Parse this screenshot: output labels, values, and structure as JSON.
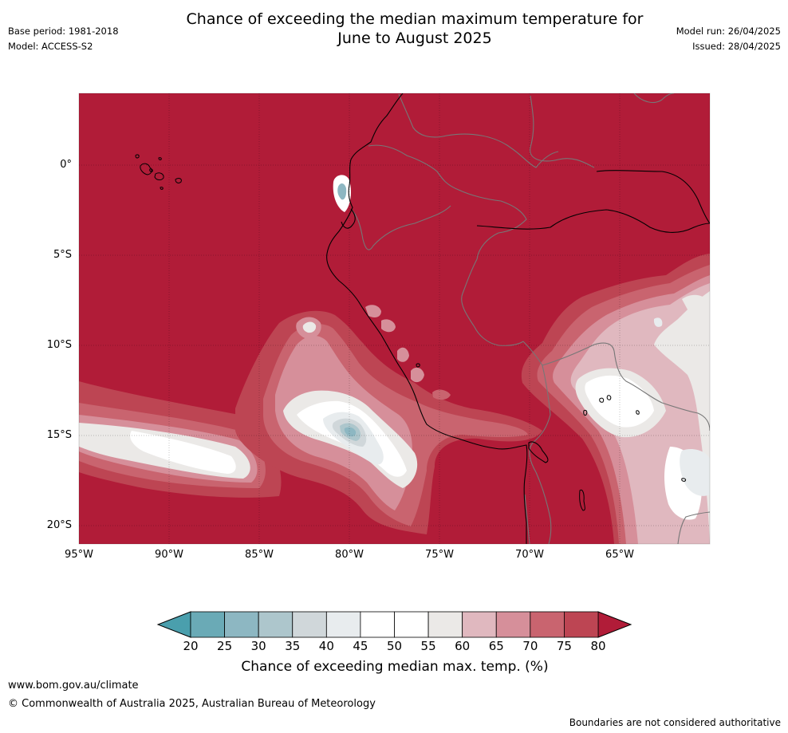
{
  "header": {
    "title_line1": "Chance of exceeding the median maximum temperature for",
    "title_line2": "June to August 2025",
    "base_period": "Base period: 1981-2018",
    "model": "Model: ACCESS-S2",
    "model_run": "Model run: 26/04/2025",
    "issued": "Issued: 28/04/2025"
  },
  "map": {
    "lat_labels": [
      "0°",
      "5°S",
      "10°S",
      "15°S",
      "20°S"
    ],
    "lon_labels": [
      "95°W",
      "90°W",
      "85°W",
      "80°W",
      "75°W",
      "70°W",
      "65°W"
    ]
  },
  "colorbar": {
    "labels": [
      "20",
      "25",
      "30",
      "35",
      "40",
      "45",
      "50",
      "55",
      "60",
      "65",
      "70",
      "75",
      "80"
    ],
    "colors": [
      "#6aaab6",
      "#8db7c2",
      "#adc6cc",
      "#d0d7da",
      "#e8ecee",
      "#ffffff",
      "#ffffff",
      "#ebe9e7",
      "#e0b8bf",
      "#d68f9a",
      "#c9646f",
      "#bd4553"
    ],
    "under_color": "#4a9fad",
    "over_color": "#b11c38",
    "title": "Chance of exceeding median max. temp. (%)"
  },
  "footer": {
    "url": "www.bom.gov.au/climate",
    "copyright": "© Commonwealth of Australia 2025, Australian Bureau of Meteorology",
    "disclaimer": "Boundaries are not considered authoritative"
  }
}
